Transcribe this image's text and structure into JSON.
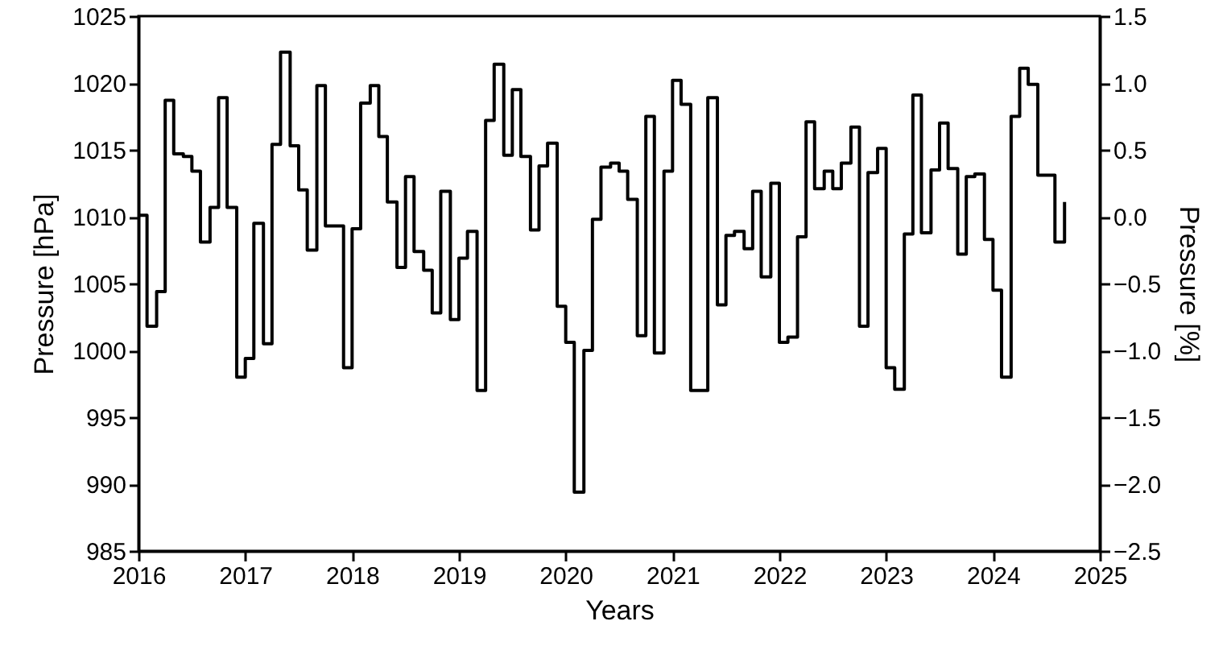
{
  "chart_data": {
    "type": "step",
    "xlabel": "Years",
    "ylabel": "Pressure [hPa]",
    "y2label": "Pressure [%]",
    "color": "#000000",
    "grid": false,
    "x": [
      2016.0,
      2016.08,
      2016.17,
      2016.25,
      2016.33,
      2016.42,
      2016.5,
      2016.58,
      2016.67,
      2016.75,
      2016.83,
      2016.92,
      2017.0,
      2017.08,
      2017.17,
      2017.25,
      2017.33,
      2017.42,
      2017.5,
      2017.58,
      2017.67,
      2017.75,
      2017.83,
      2017.92,
      2018.0,
      2018.08,
      2018.17,
      2018.25,
      2018.33,
      2018.42,
      2018.5,
      2018.58,
      2018.67,
      2018.75,
      2018.83,
      2018.92,
      2019.0,
      2019.08,
      2019.17,
      2019.25,
      2019.33,
      2019.42,
      2019.5,
      2019.58,
      2019.67,
      2019.75,
      2019.83,
      2019.92,
      2020.0,
      2020.08,
      2020.17,
      2020.25,
      2020.33,
      2020.42,
      2020.5,
      2020.58,
      2020.67,
      2020.75,
      2020.83,
      2020.92,
      2021.0,
      2021.08,
      2021.17,
      2021.25,
      2021.33,
      2021.42,
      2021.5,
      2021.58,
      2021.67,
      2021.75,
      2021.83,
      2021.92,
      2022.0,
      2022.08,
      2022.17,
      2022.25,
      2022.33,
      2022.42,
      2022.5,
      2022.58,
      2022.67,
      2022.75,
      2022.83,
      2022.92,
      2023.0,
      2023.08,
      2023.17,
      2023.25,
      2023.33,
      2023.42,
      2023.5,
      2023.58,
      2023.67,
      2023.75,
      2023.83,
      2023.92,
      2024.0,
      2024.08,
      2024.17,
      2024.25,
      2024.33,
      2024.42,
      2024.5,
      2024.58,
      2024.67
    ],
    "values": [
      1010.1,
      1001.8,
      1004.4,
      1018.7,
      1014.7,
      1014.5,
      1013.4,
      1008.1,
      1010.7,
      1018.9,
      1010.7,
      998.0,
      999.4,
      1009.5,
      1000.5,
      1015.4,
      1022.3,
      1015.3,
      1012.0,
      1007.5,
      1019.8,
      1009.3,
      1009.3,
      998.7,
      1009.1,
      1018.5,
      1019.8,
      1016.0,
      1011.1,
      1006.2,
      1013.0,
      1007.4,
      1006.0,
      1002.8,
      1011.9,
      1002.3,
      1006.9,
      1008.9,
      997.0,
      1017.2,
      1021.4,
      1014.6,
      1019.5,
      1014.5,
      1009.0,
      1013.8,
      1015.5,
      1003.3,
      1000.6,
      989.4,
      1000.0,
      1009.8,
      1013.7,
      1014.0,
      1013.4,
      1011.3,
      1001.1,
      1017.5,
      999.8,
      1013.4,
      1020.2,
      1018.4,
      997.0,
      997.0,
      1018.9,
      1003.4,
      1008.6,
      1008.9,
      1007.6,
      1011.9,
      1005.5,
      1012.5,
      1000.6,
      1001.0,
      1008.5,
      1017.1,
      1012.1,
      1013.4,
      1012.1,
      1014.0,
      1016.7,
      1001.8,
      1013.3,
      1015.1,
      998.7,
      997.1,
      1008.7,
      1019.1,
      1008.8,
      1013.5,
      1017.0,
      1013.6,
      1007.2,
      1013.0,
      1013.2,
      1008.3,
      1004.5,
      998.0,
      1017.5,
      1021.1,
      1019.9,
      1013.1,
      1013.1,
      1008.1,
      1011.1
    ],
    "xlim": [
      2016,
      2025
    ],
    "xticks": [
      2016,
      2017,
      2018,
      2019,
      2020,
      2021,
      2022,
      2023,
      2024,
      2025
    ],
    "ylim": [
      985,
      1025
    ],
    "yticks": [
      985,
      990,
      995,
      1000,
      1005,
      1010,
      1015,
      1020,
      1025
    ],
    "y2lim": [
      -2.5,
      1.5
    ],
    "y2ticks": [
      {
        "value": -2.5,
        "label": "−2.5"
      },
      {
        "value": -2,
        "label": "−2.0"
      },
      {
        "value": -1.5,
        "label": "−1.5"
      },
      {
        "value": -1,
        "label": "−1.0"
      },
      {
        "value": -0.5,
        "label": "−0.5"
      },
      {
        "value": 0,
        "label": "0.0"
      },
      {
        "value": 0.5,
        "label": "0.5"
      },
      {
        "value": 1,
        "label": "1.0"
      },
      {
        "value": 1.5,
        "label": "1.5"
      }
    ]
  }
}
